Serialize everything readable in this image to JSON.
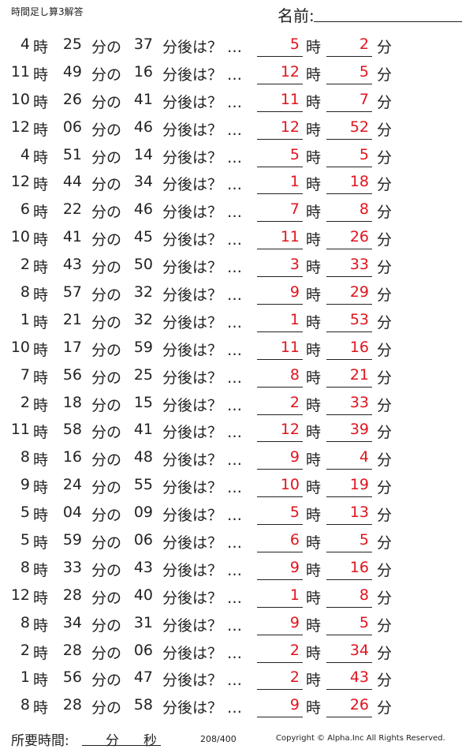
{
  "header": {
    "title": "時間足し算3解答",
    "name_label": "名前:",
    "name_end": "."
  },
  "labels": {
    "hour": "時",
    "minute": "分",
    "no": "分の",
    "question": "分後は？ …"
  },
  "rows": [
    {
      "h": "4",
      "m": "25",
      "add": "37",
      "ah": "5",
      "am": "2"
    },
    {
      "h": "11",
      "m": "49",
      "add": "16",
      "ah": "12",
      "am": "5"
    },
    {
      "h": "10",
      "m": "26",
      "add": "41",
      "ah": "11",
      "am": "7"
    },
    {
      "h": "12",
      "m": "06",
      "add": "46",
      "ah": "12",
      "am": "52"
    },
    {
      "h": "4",
      "m": "51",
      "add": "14",
      "ah": "5",
      "am": "5"
    },
    {
      "h": "12",
      "m": "44",
      "add": "34",
      "ah": "1",
      "am": "18"
    },
    {
      "h": "6",
      "m": "22",
      "add": "46",
      "ah": "7",
      "am": "8"
    },
    {
      "h": "10",
      "m": "41",
      "add": "45",
      "ah": "11",
      "am": "26"
    },
    {
      "h": "2",
      "m": "43",
      "add": "50",
      "ah": "3",
      "am": "33"
    },
    {
      "h": "8",
      "m": "57",
      "add": "32",
      "ah": "9",
      "am": "29"
    },
    {
      "h": "1",
      "m": "21",
      "add": "32",
      "ah": "1",
      "am": "53"
    },
    {
      "h": "10",
      "m": "17",
      "add": "59",
      "ah": "11",
      "am": "16"
    },
    {
      "h": "7",
      "m": "56",
      "add": "25",
      "ah": "8",
      "am": "21"
    },
    {
      "h": "2",
      "m": "18",
      "add": "15",
      "ah": "2",
      "am": "33"
    },
    {
      "h": "11",
      "m": "58",
      "add": "41",
      "ah": "12",
      "am": "39"
    },
    {
      "h": "8",
      "m": "16",
      "add": "48",
      "ah": "9",
      "am": "4"
    },
    {
      "h": "9",
      "m": "24",
      "add": "55",
      "ah": "10",
      "am": "19"
    },
    {
      "h": "5",
      "m": "04",
      "add": "09",
      "ah": "5",
      "am": "13"
    },
    {
      "h": "5",
      "m": "59",
      "add": "06",
      "ah": "6",
      "am": "5"
    },
    {
      "h": "8",
      "m": "33",
      "add": "43",
      "ah": "9",
      "am": "16"
    },
    {
      "h": "12",
      "m": "28",
      "add": "40",
      "ah": "1",
      "am": "8"
    },
    {
      "h": "8",
      "m": "34",
      "add": "31",
      "ah": "9",
      "am": "5"
    },
    {
      "h": "2",
      "m": "28",
      "add": "06",
      "ah": "2",
      "am": "34"
    },
    {
      "h": "1",
      "m": "56",
      "add": "47",
      "ah": "2",
      "am": "43"
    },
    {
      "h": "8",
      "m": "28",
      "add": "58",
      "ah": "9",
      "am": "26"
    }
  ],
  "footer": {
    "time_label": "所要時間:",
    "minute_label": "分",
    "second_label": "秒",
    "page": "208/400",
    "copyright": "Copyright © Alpha.Inc All Rights Reserved."
  }
}
